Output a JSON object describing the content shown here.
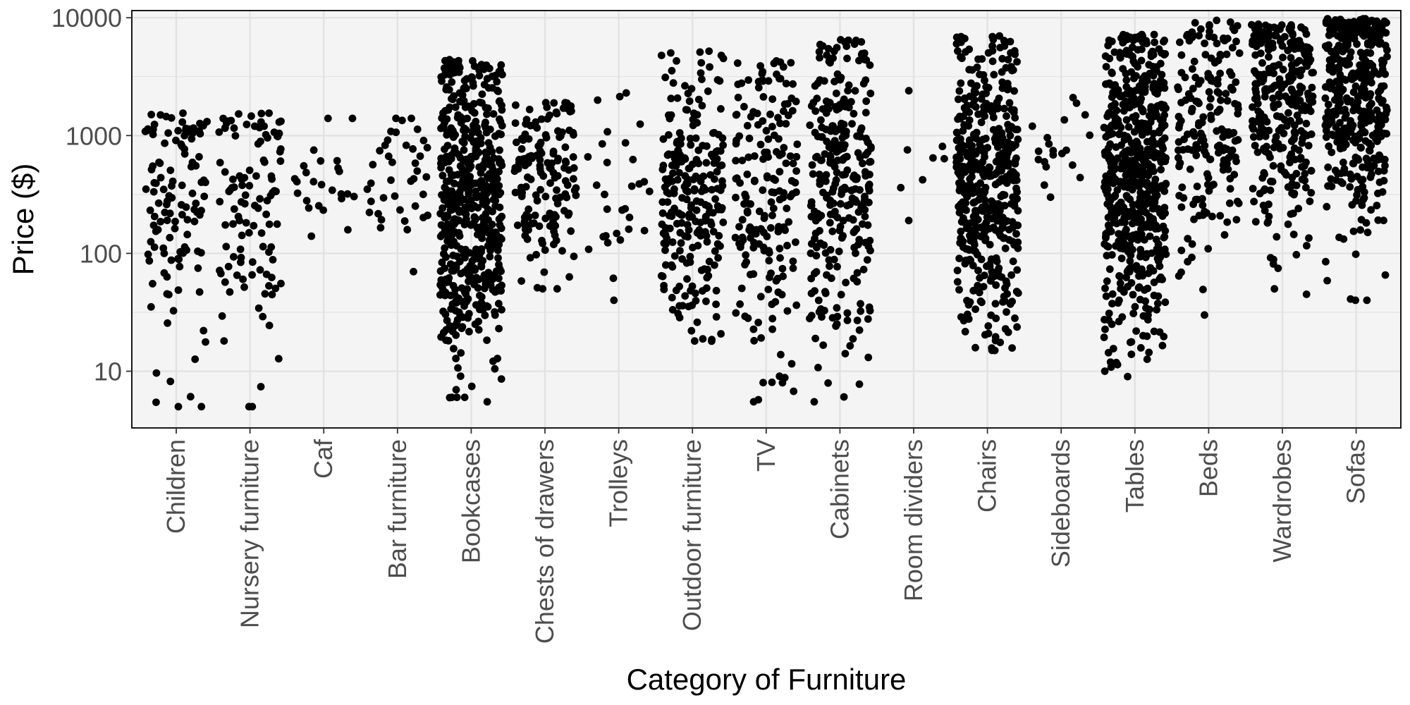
{
  "chart_data": {
    "type": "scatter",
    "subtype": "jitter-strip",
    "title": "",
    "xlabel": "Category of Furniture",
    "ylabel": "Price ($)",
    "y_scale": "log10",
    "ylim": [
      3.3,
      11500
    ],
    "y_ticks": [
      10,
      100,
      1000,
      10000
    ],
    "y_tick_labels": [
      "10",
      "100",
      "1000",
      "10000"
    ],
    "grid": true,
    "legend": "none",
    "colors": {
      "panel": "#f4f4f4",
      "grid": "#e2e2e2",
      "point": "#000000",
      "frame": "#000000"
    },
    "categories": [
      "Children",
      "Nursery furniture",
      "Caf",
      "Bar furniture",
      "Bookcases",
      "Chests of drawers",
      "Trolleys",
      "Outdoor furniture",
      "TV",
      "Cabinets",
      "Room dividers",
      "Chairs",
      "Sideboards",
      "Tables",
      "Beds",
      "Wardrobes",
      "Sofas"
    ],
    "series": [
      {
        "category": "Children",
        "n_points": 120,
        "price_min": 5,
        "price_max": 1550,
        "median_price": 250,
        "min_price_points": [
          5,
          5
        ],
        "max_price_points": [
          1550,
          1100,
          1100
        ]
      },
      {
        "category": "Nursery furniture",
        "n_points": 110,
        "price_min": 5,
        "price_max": 1550,
        "median_price": 350,
        "min_price_points": [
          5,
          5
        ],
        "max_price_points": [
          1550,
          1200
        ]
      },
      {
        "category": "Caf",
        "n_points": 25,
        "price_min": 140,
        "price_max": 1400,
        "median_price": 370,
        "min_price_points": [
          140
        ],
        "max_price_points": [
          1400,
          1400
        ]
      },
      {
        "category": "Bar furniture",
        "n_points": 40,
        "price_min": 70,
        "price_max": 1400,
        "median_price": 380,
        "min_price_points": [
          70
        ],
        "max_price_points": [
          1400,
          1400
        ]
      },
      {
        "category": "Bookcases",
        "n_points": 550,
        "price_min": 5.5,
        "price_max": 4400,
        "median_price": 300,
        "min_price_points": [
          5.5,
          6,
          6,
          6
        ],
        "max_price_points": [
          4400,
          4300,
          4000
        ]
      },
      {
        "category": "Chests of drawers",
        "n_points": 150,
        "price_min": 50,
        "price_max": 1900,
        "median_price": 500,
        "min_price_points": [
          50,
          50
        ],
        "max_price_points": [
          1900,
          1900
        ]
      },
      {
        "category": "Trolleys",
        "n_points": 30,
        "price_min": 40,
        "price_max": 2300,
        "median_price": 400,
        "min_price_points": [
          40
        ],
        "max_price_points": [
          2300,
          2000
        ]
      },
      {
        "category": "Outdoor furniture",
        "n_points": 250,
        "price_min": 18,
        "price_max": 5200,
        "median_price": 300,
        "min_price_points": [
          18
        ],
        "max_price_points": [
          5200,
          4300
        ]
      },
      {
        "category": "TV",
        "n_points": 190,
        "price_min": 5.5,
        "price_max": 4300,
        "median_price": 300,
        "min_price_points": [
          5.5
        ],
        "max_price_points": [
          4300,
          4200
        ]
      },
      {
        "category": "Cabinets",
        "n_points": 300,
        "price_min": 5.5,
        "price_max": 6500,
        "median_price": 500,
        "min_price_points": [
          5.5
        ],
        "max_price_points": [
          6500,
          5000
        ]
      },
      {
        "category": "Room dividers",
        "n_points": 8,
        "price_min": 190,
        "price_max": 2400,
        "median_price": 550,
        "min_price_points": [
          190
        ],
        "max_price_points": [
          2400
        ]
      },
      {
        "category": "Chairs",
        "n_points": 480,
        "price_min": 15,
        "price_max": 7000,
        "median_price": 400,
        "min_price_points": [
          15
        ],
        "max_price_points": [
          7000,
          6000
        ]
      },
      {
        "category": "Sideboards",
        "n_points": 20,
        "price_min": 300,
        "price_max": 2100,
        "median_price": 900,
        "min_price_points": [
          300
        ],
        "max_price_points": [
          2100
        ]
      },
      {
        "category": "Tables",
        "n_points": 600,
        "price_min": 9,
        "price_max": 7200,
        "median_price": 500,
        "min_price_points": [
          9,
          10
        ],
        "max_price_points": [
          7200,
          7000
        ]
      },
      {
        "category": "Beds",
        "n_points": 190,
        "price_min": 30,
        "price_max": 9500,
        "median_price": 1100,
        "min_price_points": [
          30
        ],
        "max_price_points": [
          9500,
          8500,
          8000
        ]
      },
      {
        "category": "Wardrobes",
        "n_points": 300,
        "price_min": 45,
        "price_max": 8800,
        "median_price": 2000,
        "min_price_points": [
          45,
          50
        ],
        "max_price_points": [
          8800,
          6500
        ]
      },
      {
        "category": "Sofas",
        "n_points": 420,
        "price_min": 40,
        "price_max": 9800,
        "median_price": 2400,
        "min_price_points": [
          40,
          40
        ],
        "max_price_points": [
          9800,
          9000
        ]
      }
    ]
  }
}
